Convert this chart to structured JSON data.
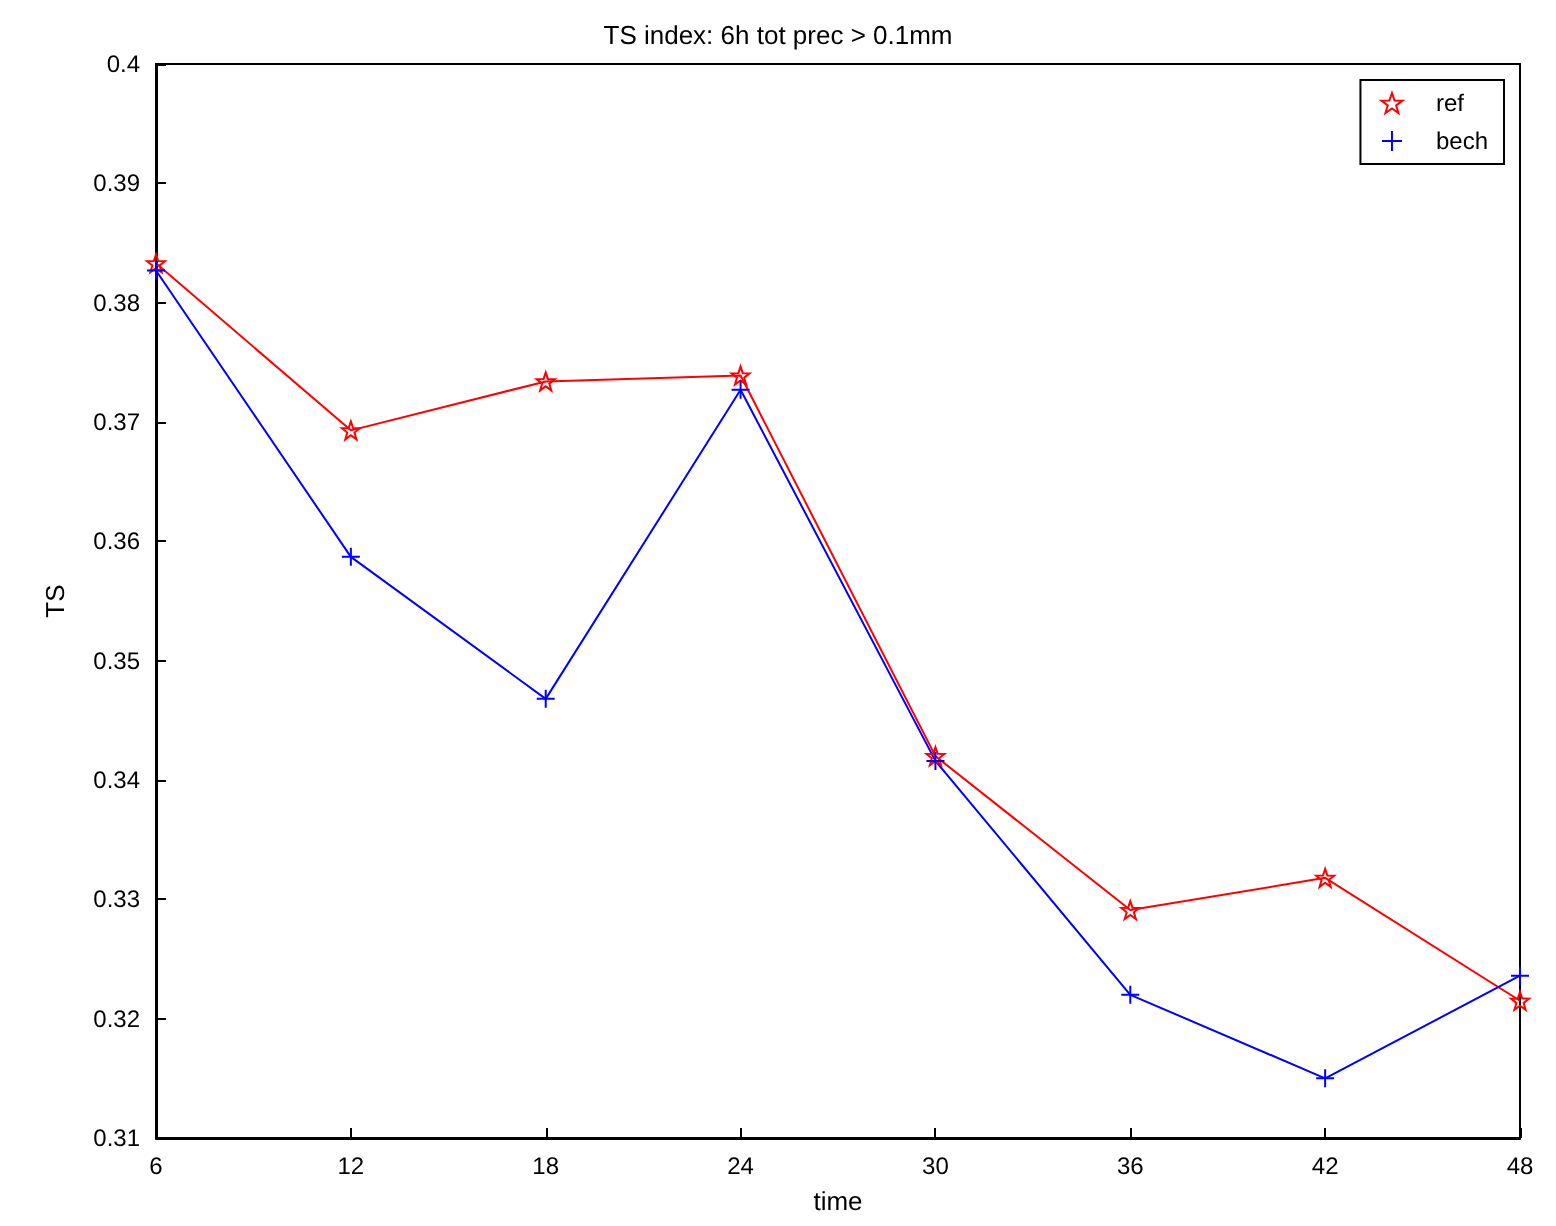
{
  "chart_data": {
    "type": "line",
    "title": "TS index: 6h tot prec > 0.1mm",
    "xlabel": "time",
    "ylabel": "TS",
    "x": [
      6,
      12,
      18,
      24,
      30,
      36,
      42,
      48
    ],
    "series": [
      {
        "name": "ref",
        "color": "#ff0000",
        "marker": "star",
        "values": [
          0.3833,
          0.3693,
          0.3734,
          0.3739,
          0.342,
          0.3291,
          0.3318,
          0.3215
        ]
      },
      {
        "name": "bech",
        "color": "#0000ff",
        "marker": "cross",
        "values": [
          0.3827,
          0.3587,
          0.3468,
          0.3727,
          0.3416,
          0.322,
          0.315,
          0.3236
        ]
      }
    ],
    "xlim": [
      6,
      48
    ],
    "xticks": [
      6,
      12,
      18,
      24,
      30,
      36,
      42,
      48
    ],
    "ylim": [
      0.31,
      0.4
    ],
    "yticks": [
      0.31,
      0.32,
      0.33,
      0.34,
      0.35,
      0.36,
      0.37,
      0.38,
      0.39,
      0.4
    ],
    "grid": false,
    "legend": "top right",
    "line_style": "solid"
  }
}
